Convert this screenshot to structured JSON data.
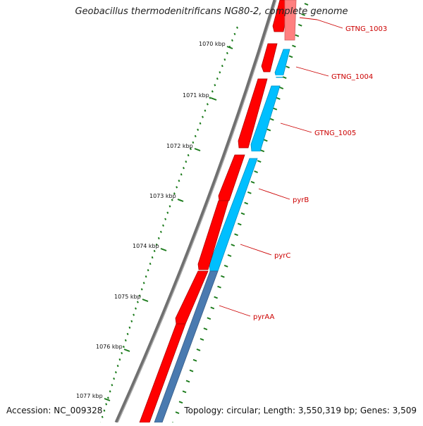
{
  "title": "Geobacillus thermodenitrificans NG80-2, complete genome",
  "footer": {
    "accession": "Accession: NC_009328",
    "summary": "Topology: circular; Length: 3,550,319 bp; Genes: 3,509"
  },
  "kbp_labels": [
    "1070 kbp",
    "1071 kbp",
    "1072 kbp",
    "1073 kbp",
    "1074 kbp",
    "1075 kbp",
    "1076 kbp",
    "1077 kbp"
  ],
  "genes": [
    {
      "name": "GTNG_1003"
    },
    {
      "name": "GTNG_1004"
    },
    {
      "name": "GTNG_1005"
    },
    {
      "name": "pyrB"
    },
    {
      "name": "pyrC"
    },
    {
      "name": "pyrAA"
    }
  ],
  "colors": {
    "forward_strand": "#ff0000",
    "reverse_strand": "#00bfff",
    "backbone": "#808080",
    "ticks": "#1a7a1a",
    "label": "#cc0000"
  }
}
